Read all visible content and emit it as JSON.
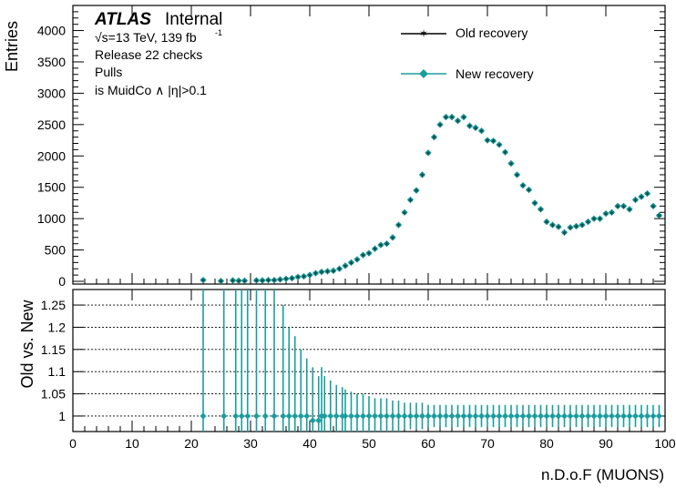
{
  "colors": {
    "old": "#000000",
    "new": "#1a9e9e",
    "frame": "#000000"
  },
  "header": {
    "brand": "ATLAS",
    "status": "Internal",
    "sqrt_prefix": "√s=13 TeV, 139 fb",
    "lumi_exp": "-1",
    "line2": "Release 22 checks",
    "line3": "Pulls",
    "line4": "is MuidCo ∧ |η|>0.1"
  },
  "chart_data": [
    {
      "type": "scatter",
      "panel": "top",
      "ylabel": "Entries",
      "ylim": [
        0,
        4400
      ],
      "yticks": [
        0,
        500,
        1000,
        1500,
        2000,
        2500,
        3000,
        3500,
        4000
      ],
      "xlim": [
        0,
        100
      ],
      "legend_position": "top-right",
      "series": [
        {
          "name": "Old recovery",
          "marker": "star",
          "x": [
            22,
            25,
            27,
            28,
            29,
            31,
            32,
            33,
            34,
            35,
            36,
            37,
            38,
            39,
            40,
            41,
            42,
            43,
            44,
            45,
            46,
            47,
            48,
            49,
            50,
            51,
            52,
            53,
            54,
            55,
            56,
            57,
            58,
            59,
            60,
            61,
            62,
            63,
            64,
            65,
            66,
            67,
            68,
            69,
            70,
            71,
            72,
            73,
            74,
            75,
            76,
            77,
            78,
            79,
            80,
            81,
            82,
            83,
            84,
            85,
            86,
            87,
            88,
            89,
            90,
            91,
            92,
            93,
            94,
            95,
            96,
            97,
            98,
            99
          ],
          "y": [
            20,
            5,
            15,
            10,
            10,
            15,
            15,
            20,
            20,
            30,
            40,
            50,
            70,
            80,
            100,
            130,
            150,
            160,
            170,
            200,
            250,
            300,
            350,
            420,
            450,
            520,
            580,
            600,
            700,
            900,
            1100,
            1300,
            1450,
            1700,
            2050,
            2300,
            2500,
            2620,
            2620,
            2560,
            2620,
            2480,
            2450,
            2400,
            2250,
            2240,
            2180,
            2060,
            1880,
            1700,
            1530,
            1460,
            1250,
            1150,
            950,
            900,
            870,
            780,
            860,
            880,
            900,
            950,
            1000,
            1000,
            1080,
            1100,
            1200,
            1200,
            1150,
            1300,
            1350,
            1400,
            1200,
            1050
          ]
        },
        {
          "name": "New recovery",
          "marker": "diamond",
          "x": [
            22,
            25,
            27,
            28,
            29,
            31,
            32,
            33,
            34,
            35,
            36,
            37,
            38,
            39,
            40,
            41,
            42,
            43,
            44,
            45,
            46,
            47,
            48,
            49,
            50,
            51,
            52,
            53,
            54,
            55,
            56,
            57,
            58,
            59,
            60,
            61,
            62,
            63,
            64,
            65,
            66,
            67,
            68,
            69,
            70,
            71,
            72,
            73,
            74,
            75,
            76,
            77,
            78,
            79,
            80,
            81,
            82,
            83,
            84,
            85,
            86,
            87,
            88,
            89,
            90,
            91,
            92,
            93,
            94,
            95,
            96,
            97,
            98,
            99
          ],
          "y": [
            20,
            5,
            15,
            10,
            10,
            15,
            15,
            20,
            20,
            30,
            40,
            50,
            70,
            80,
            100,
            130,
            150,
            160,
            170,
            200,
            250,
            300,
            350,
            420,
            450,
            520,
            580,
            600,
            700,
            900,
            1100,
            1300,
            1450,
            1700,
            2050,
            2300,
            2500,
            2620,
            2620,
            2560,
            2620,
            2480,
            2450,
            2400,
            2250,
            2240,
            2180,
            2060,
            1880,
            1700,
            1530,
            1460,
            1250,
            1150,
            950,
            900,
            870,
            780,
            860,
            880,
            900,
            950,
            1000,
            1000,
            1080,
            1100,
            1200,
            1200,
            1150,
            1300,
            1350,
            1400,
            1200,
            1050
          ]
        }
      ]
    },
    {
      "type": "scatter",
      "panel": "ratio",
      "ylabel": "Old vs. New",
      "xlabel": "n.D.o.F (MUONS)",
      "ylim": [
        0.965,
        1.285
      ],
      "yticks": [
        1,
        1.05,
        1.1,
        1.15,
        1.2,
        1.25
      ],
      "ytick_labels": [
        "1",
        "1.05",
        "1.1",
        "1.15",
        "1.2",
        "1.25"
      ],
      "xlim": [
        0,
        100
      ],
      "xticks": [
        0,
        10,
        20,
        30,
        40,
        50,
        60,
        70,
        80,
        90,
        100
      ],
      "grid": "horizontal dotted",
      "x": [
        22,
        25.5,
        27.5,
        28.5,
        29.5,
        31,
        32.5,
        34,
        35.5,
        36.5,
        37.5,
        38.5,
        39.5,
        40.5,
        41.5,
        42,
        42.5,
        43.5,
        44.5,
        45.5,
        46,
        47,
        48,
        49,
        50,
        51,
        52,
        53,
        54,
        55,
        56,
        57,
        58,
        59,
        60,
        61,
        62,
        63,
        64,
        65,
        66,
        67,
        68,
        69,
        70,
        71,
        72,
        73,
        74,
        75,
        76,
        77,
        78,
        79,
        80,
        81,
        82,
        83,
        84,
        85,
        86,
        87,
        88,
        89,
        90,
        91,
        92,
        93,
        94,
        95,
        96,
        97,
        98,
        99
      ],
      "y": [
        1,
        1,
        1,
        1,
        1,
        1,
        1,
        1,
        1,
        1,
        1,
        1,
        1,
        0.99,
        0.99,
        1,
        1,
        1,
        1,
        1,
        1,
        1,
        1,
        1,
        1,
        1,
        1,
        1,
        1,
        1,
        1,
        1,
        1,
        1,
        1,
        1,
        1,
        1,
        1,
        1,
        1,
        1,
        1,
        1,
        1,
        1,
        1,
        1,
        1,
        1,
        1,
        1,
        1,
        1,
        1,
        1,
        1,
        1,
        1,
        1,
        1,
        1,
        1,
        1,
        1,
        1,
        1,
        1,
        1,
        1,
        1,
        1,
        1,
        1
      ],
      "err": [
        0.5,
        0.5,
        0.5,
        0.5,
        0.5,
        0.5,
        0.4,
        0.3,
        0.25,
        0.2,
        0.18,
        0.15,
        0.13,
        0.12,
        0.1,
        0.11,
        0.09,
        0.08,
        0.07,
        0.065,
        0.06,
        0.055,
        0.05,
        0.05,
        0.045,
        0.04,
        0.04,
        0.04,
        0.035,
        0.035,
        0.03,
        0.03,
        0.03,
        0.03,
        0.025,
        0.025,
        0.025,
        0.025,
        0.025,
        0.025,
        0.025,
        0.025,
        0.025,
        0.025,
        0.025,
        0.025,
        0.025,
        0.025,
        0.025,
        0.025,
        0.025,
        0.025,
        0.025,
        0.025,
        0.025,
        0.025,
        0.025,
        0.025,
        0.025,
        0.025,
        0.025,
        0.025,
        0.025,
        0.025,
        0.025,
        0.025,
        0.025,
        0.025,
        0.025,
        0.025,
        0.025,
        0.025,
        0.025,
        0.025
      ]
    }
  ]
}
